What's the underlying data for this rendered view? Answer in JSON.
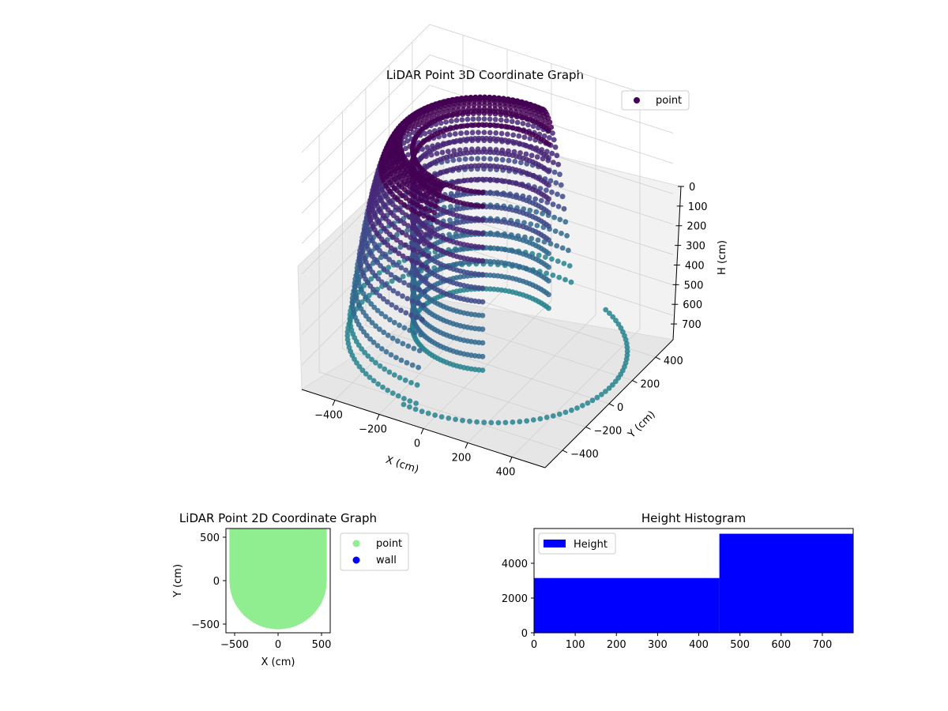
{
  "chart_data": [
    {
      "type": "scatter",
      "projection": "3d",
      "title": "LiDAR Point 3D Coordinate Graph",
      "xlabel": "X (cm)",
      "ylabel": "Y (cm)",
      "zlabel": "H (cm)",
      "xticks": [
        -400,
        -200,
        0,
        200,
        400
      ],
      "yticks": [
        -400,
        -200,
        0,
        200,
        400
      ],
      "zticks": [
        0,
        100,
        200,
        300,
        400,
        500,
        600,
        700
      ],
      "xlim": [
        -550,
        550
      ],
      "ylim": [
        -550,
        550
      ],
      "zlim": [
        0,
        780
      ],
      "z_axis_inverted": true,
      "grid": true,
      "legend": {
        "position": "top-right",
        "entries": [
          "point"
        ]
      },
      "colormap": [
        "#440154",
        "#482878",
        "#3e4a89",
        "#31688e",
        "#26828e"
      ],
      "series": [
        {
          "name": "point",
          "structure": "lidar-rings",
          "wall_cylinder": {
            "radius": 300,
            "h_min": 80,
            "h_max": 700
          },
          "scan_lines": {
            "count": 64,
            "radius_start": 350,
            "radius_end": 560,
            "h_top": 60,
            "h_bottom": 700
          },
          "ground_ring": {
            "radius": 560,
            "h": 720
          }
        }
      ]
    },
    {
      "type": "scatter",
      "title": "LiDAR Point 2D Coordinate Graph",
      "xlabel": "X (cm)",
      "ylabel": "Y (cm)",
      "xticks": [
        -500,
        0,
        500
      ],
      "yticks": [
        -500,
        0,
        500
      ],
      "xlim": [
        -600,
        600
      ],
      "ylim": [
        -600,
        600
      ],
      "legend": {
        "position": "outside-right",
        "entries": [
          "point",
          "wall"
        ]
      },
      "series": [
        {
          "name": "point",
          "color": "#90ee90",
          "region": "half-disk-with-upper-rectangle",
          "radius": 560
        },
        {
          "name": "wall",
          "color": "#0000ff"
        }
      ]
    },
    {
      "type": "bar",
      "subtype": "histogram",
      "title": "Height Histogram",
      "xticks": [
        0,
        100,
        200,
        300,
        400,
        500,
        600,
        700
      ],
      "yticks": [
        0,
        2000,
        4000
      ],
      "xlim": [
        0,
        775
      ],
      "ylim": [
        0,
        6000
      ],
      "legend": {
        "position": "top-left",
        "entries": [
          "Height"
        ]
      },
      "series": [
        {
          "name": "Height",
          "color": "#0000ff",
          "bins": [
            {
              "x0": 0,
              "x1": 450,
              "count": 3150
            },
            {
              "x0": 450,
              "x1": 775,
              "count": 5700
            }
          ]
        }
      ]
    }
  ]
}
